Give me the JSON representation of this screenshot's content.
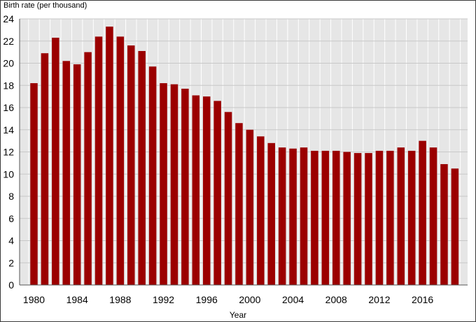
{
  "chart_data": {
    "type": "bar",
    "ylabel": "Birth rate (per thousand)",
    "xlabel": "Year",
    "ylim": [
      0,
      24
    ],
    "yticks": [
      0,
      2,
      4,
      6,
      8,
      10,
      12,
      14,
      16,
      18,
      20,
      22,
      24
    ],
    "xtick_labels": [
      "1980",
      "1984",
      "1988",
      "1992",
      "1996",
      "2000",
      "2004",
      "2008",
      "2012",
      "2016"
    ],
    "grid": true,
    "bar_color": "#9b0000",
    "plot_background": "#e6e6e6",
    "categories": [
      1980,
      1981,
      1982,
      1983,
      1984,
      1985,
      1986,
      1987,
      1988,
      1989,
      1990,
      1991,
      1992,
      1993,
      1994,
      1995,
      1996,
      1997,
      1998,
      1999,
      2000,
      2001,
      2002,
      2003,
      2004,
      2005,
      2006,
      2007,
      2008,
      2009,
      2010,
      2011,
      2012,
      2013,
      2014,
      2015,
      2016,
      2017,
      2018,
      2019
    ],
    "values": [
      18.2,
      20.9,
      22.3,
      20.2,
      19.9,
      21.0,
      22.4,
      23.3,
      22.4,
      21.6,
      21.1,
      19.7,
      18.2,
      18.1,
      17.7,
      17.1,
      17.0,
      16.6,
      15.6,
      14.6,
      14.0,
      13.4,
      12.8,
      12.4,
      12.3,
      12.4,
      12.1,
      12.1,
      12.1,
      12.0,
      11.9,
      11.9,
      12.1,
      12.1,
      12.4,
      12.1,
      13.0,
      12.4,
      10.9,
      10.5
    ]
  }
}
